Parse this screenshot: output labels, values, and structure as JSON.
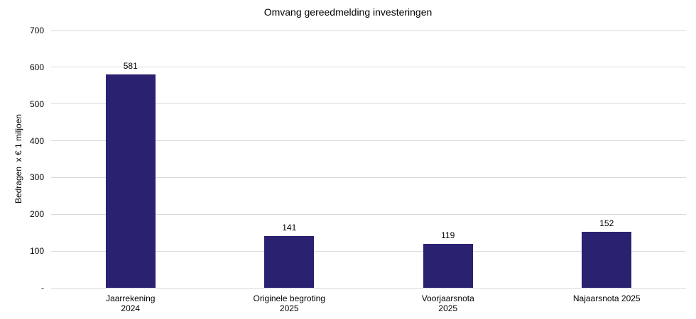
{
  "chart_data": {
    "type": "bar",
    "title": "Omvang gereedmelding investeringen",
    "ylabel": "Bedragen  x € 1 miljoen",
    "xlabel": "",
    "categories": [
      "Jaarrekening\n2024",
      "Originele begroting\n2025",
      "Voorjaarsnota\n2025",
      "Najaarsnota 2025"
    ],
    "values": [
      581,
      141,
      119,
      152
    ],
    "value_labels": [
      "581",
      "141",
      "119",
      "152"
    ],
    "ylim": [
      0,
      700
    ],
    "yticks": [
      {
        "value": 0,
        "label": "-"
      },
      {
        "value": 100,
        "label": "100"
      },
      {
        "value": 200,
        "label": "200"
      },
      {
        "value": 300,
        "label": "300"
      },
      {
        "value": 400,
        "label": "400"
      },
      {
        "value": 500,
        "label": "500"
      },
      {
        "value": 600,
        "label": "600"
      },
      {
        "value": 700,
        "label": "700"
      }
    ],
    "grid": true,
    "legend": false,
    "colors": {
      "bar": "#2B2171",
      "gridline": "#D9D9D9",
      "text": "#000000",
      "background": "#FFFFFF"
    }
  }
}
